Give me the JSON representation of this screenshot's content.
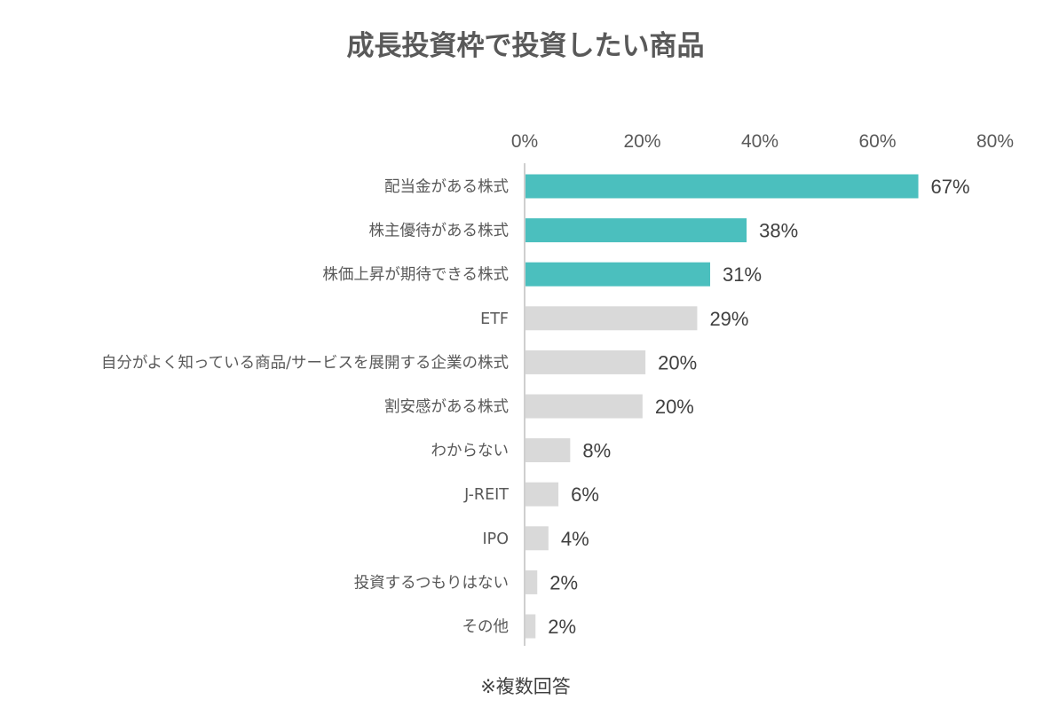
{
  "chart_data": {
    "type": "bar",
    "orientation": "horizontal",
    "title": "成長投資枠で投資したい商品",
    "categories": [
      "配当金がある株式",
      "株主優待がある株式",
      "株価上昇が期待できる株式",
      "ETF",
      "自分がよく知っている商品/サービスを展開する企業の株式",
      "割安感がある株式",
      "わからない",
      "J-REIT",
      "IPO",
      "投資するつもりはない",
      "その他"
    ],
    "values": [
      67,
      38,
      31,
      29,
      20,
      20,
      8,
      6,
      4,
      2,
      2
    ],
    "value_labels": [
      "67%",
      "38%",
      "31%",
      "29%",
      "20%",
      "20%",
      "8%",
      "6%",
      "4%",
      "2%",
      "2%"
    ],
    "exact_values": [
      66.8,
      37.6,
      31.4,
      29.2,
      20.4,
      19.9,
      7.6,
      5.6,
      3.9,
      2.0,
      1.7
    ],
    "highlighted": [
      true,
      true,
      true,
      false,
      false,
      false,
      false,
      false,
      false,
      false,
      false
    ],
    "xlim": [
      0,
      80
    ],
    "x_ticks": [
      "0%",
      "20%",
      "40%",
      "60%",
      "80%"
    ],
    "x_tick_values": [
      0,
      20,
      40,
      60,
      80
    ],
    "x_axis_position": "top",
    "grid": false,
    "legend": "none",
    "colors": {
      "highlight": "#4bbfbe",
      "default": "#d9d9d9",
      "axis": "#bfbfbf"
    },
    "footnote": "※複数回答"
  }
}
